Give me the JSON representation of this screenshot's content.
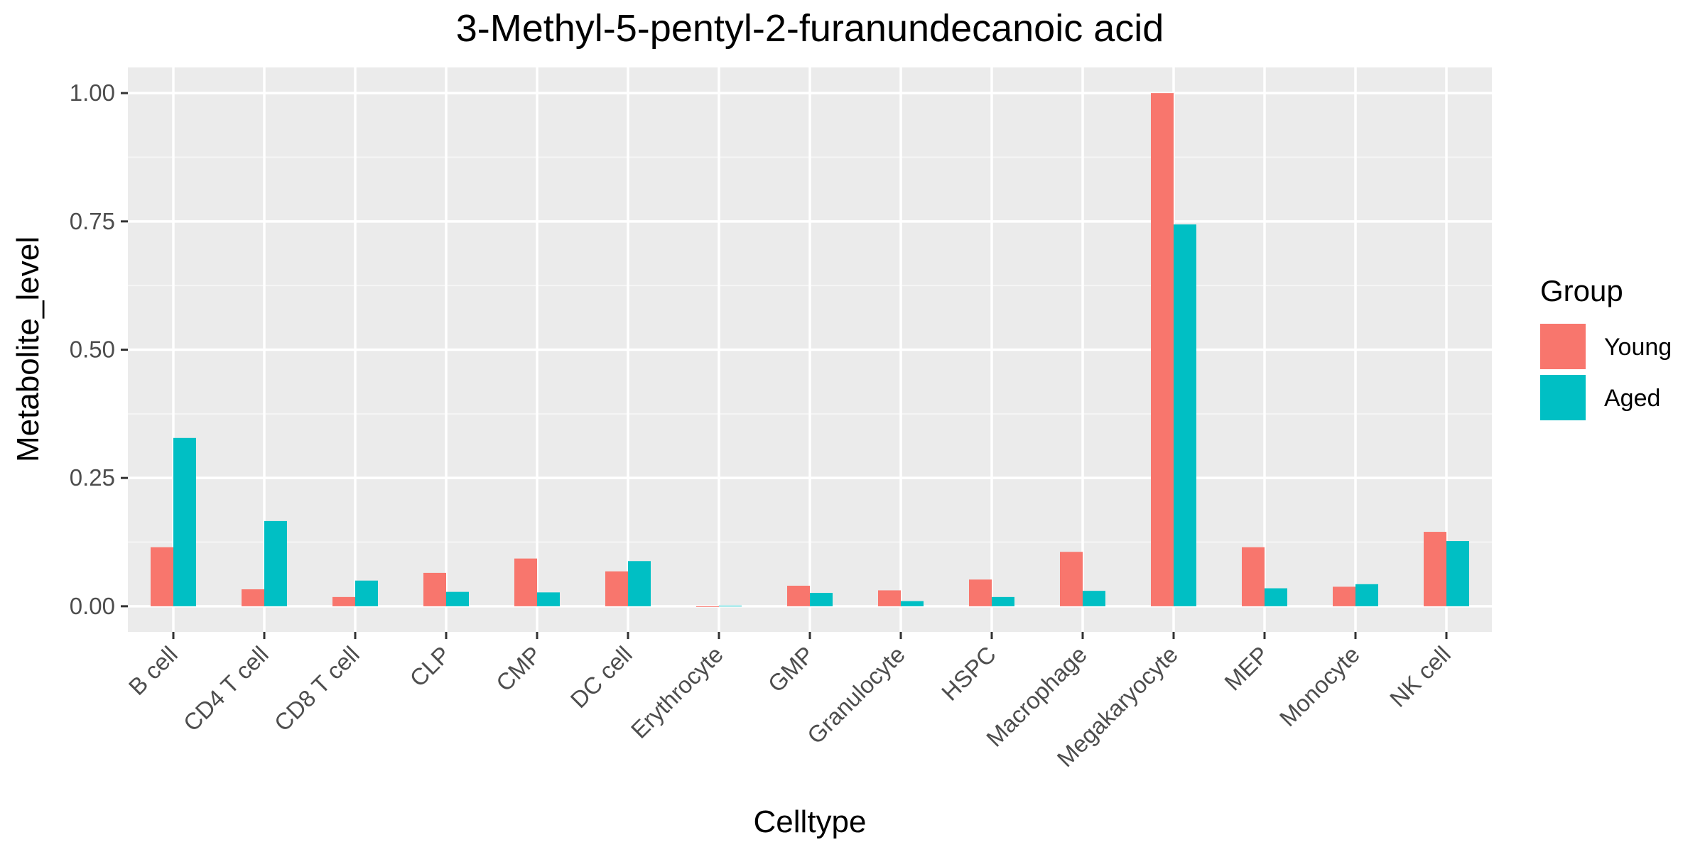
{
  "chart_data": {
    "type": "bar",
    "title": "3-Methyl-5-pentyl-2-furanundecanoic acid",
    "xlabel": "Celltype",
    "ylabel": "Metabolite_level",
    "ylim": [
      -0.05,
      1.05
    ],
    "yticks": [
      "0.00",
      "0.25",
      "0.50",
      "0.75",
      "1.00"
    ],
    "grid": true,
    "legend_title": "Group",
    "legend_position": "right",
    "categories": [
      "B cell",
      "CD4 T cell",
      "CD8 T cell",
      "CLP",
      "CMP",
      "DC cell",
      "Erythrocyte",
      "GMP",
      "Granulocyte",
      "HSPC",
      "Macrophage",
      "Megakaryocyte",
      "MEP",
      "Monocyte",
      "NK cell"
    ],
    "series": [
      {
        "name": "Young",
        "color": "#F8766D",
        "values": [
          0.115,
          0.033,
          0.018,
          0.065,
          0.093,
          0.068,
          0.0,
          0.04,
          0.031,
          0.052,
          0.106,
          1.0,
          0.115,
          0.038,
          0.145
        ]
      },
      {
        "name": "Aged",
        "color": "#00BFC4",
        "values": [
          0.328,
          0.166,
          0.05,
          0.028,
          0.027,
          0.088,
          0.001,
          0.026,
          0.01,
          0.018,
          0.03,
          0.744,
          0.035,
          0.043,
          0.127
        ]
      }
    ]
  },
  "colors": {
    "panel_background": "#EBEBEB",
    "grid_major": "#FFFFFF",
    "grid_minor": "#F5F5F5",
    "tick_text": "#4D4D4D"
  }
}
